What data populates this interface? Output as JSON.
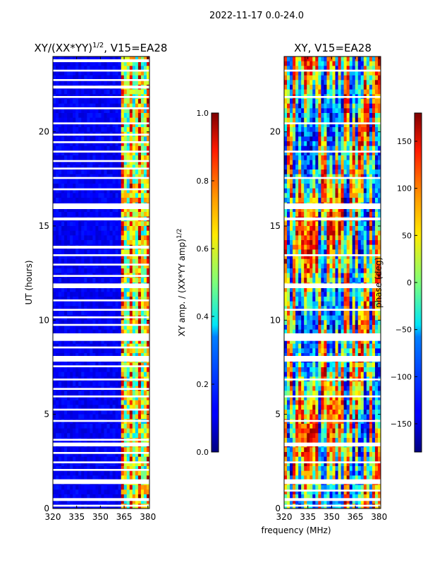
{
  "figure": {
    "suptitle": "2022-11-17 0.0-24.0",
    "xlabel": "frequency (MHz)"
  },
  "chart_data": [
    {
      "type": "heatmap",
      "title": "XY/(XX*YY)^1/2, V15=EA28",
      "title_main": "XY/(XX*YY)",
      "title_exp": "1/2",
      "title_tail": ", V15=EA28",
      "ylabel": "UT (hours)",
      "xlim": [
        320,
        381
      ],
      "ylim": [
        0,
        24
      ],
      "x_ticks": [
        320,
        335,
        350,
        365,
        380
      ],
      "y_ticks": [
        0,
        5,
        10,
        15,
        20
      ],
      "colorbar": {
        "label": "XY amp. / (XX*YY amp)^1/2",
        "label_main": "XY amp. / (XX*YY amp)",
        "label_exp": "1/2",
        "range": [
          0.0,
          1.0
        ],
        "tick_values": [
          0.0,
          0.2,
          0.4,
          0.6,
          0.8,
          1.0
        ],
        "tick_labels": [
          "0.0",
          "0.2",
          "0.4",
          "0.6",
          "0.8",
          "1.0"
        ]
      },
      "flagged_bands_hours": [
        [
          0.1,
          0.2
        ],
        [
          0.4,
          0.55
        ],
        [
          1.3,
          1.55
        ],
        [
          2.0,
          2.1
        ],
        [
          2.4,
          2.5
        ],
        [
          2.9,
          3.0
        ],
        [
          3.3,
          3.5
        ],
        [
          3.6,
          3.7
        ],
        [
          4.6,
          4.7
        ],
        [
          5.2,
          5.3
        ],
        [
          5.9,
          6.0
        ],
        [
          6.3,
          6.4
        ],
        [
          6.8,
          6.9
        ],
        [
          7.5,
          7.6
        ],
        [
          7.8,
          8.1
        ],
        [
          8.5,
          8.6
        ],
        [
          8.9,
          9.3
        ],
        [
          9.7,
          9.8
        ],
        [
          10.1,
          10.2
        ],
        [
          10.5,
          10.6
        ],
        [
          11.0,
          11.1
        ],
        [
          11.7,
          11.95
        ],
        [
          12.3,
          12.4
        ],
        [
          12.9,
          13.0
        ],
        [
          13.4,
          13.5
        ],
        [
          13.8,
          13.95
        ],
        [
          15.3,
          15.45
        ],
        [
          15.9,
          16.2
        ],
        [
          16.9,
          17.0
        ],
        [
          17.5,
          17.6
        ],
        [
          18.0,
          18.1
        ],
        [
          18.4,
          18.5
        ],
        [
          18.9,
          19.0
        ],
        [
          19.4,
          19.5
        ],
        [
          19.8,
          19.9
        ],
        [
          20.4,
          20.5
        ],
        [
          21.2,
          21.3
        ],
        [
          21.8,
          21.9
        ],
        [
          22.3,
          22.45
        ],
        [
          22.7,
          22.8
        ],
        [
          23.2,
          23.3
        ],
        [
          23.7,
          23.85
        ]
      ]
    },
    {
      "type": "heatmap",
      "title": "XY, V15=EA28",
      "ylabel": "",
      "xlim": [
        320,
        381
      ],
      "ylim": [
        0,
        24
      ],
      "x_ticks": [
        320,
        335,
        350,
        365,
        380
      ],
      "y_ticks": [
        0,
        5,
        10,
        15,
        20
      ],
      "colorbar": {
        "label": "phase (deg)",
        "range": [
          -180,
          180
        ],
        "tick_values": [
          -150,
          -100,
          -50,
          0,
          50,
          100,
          150
        ],
        "tick_labels": [
          "−150",
          "−100",
          "−50",
          "0",
          "50",
          "100",
          "150"
        ]
      },
      "flagged_bands_hours": [
        [
          0.1,
          0.2
        ],
        [
          0.4,
          0.55
        ],
        [
          0.9,
          1.0
        ],
        [
          1.3,
          1.55
        ],
        [
          2.4,
          2.5
        ],
        [
          3.3,
          3.5
        ],
        [
          4.6,
          4.7
        ],
        [
          5.9,
          6.0
        ],
        [
          6.8,
          6.9
        ],
        [
          7.8,
          8.1
        ],
        [
          8.9,
          9.3
        ],
        [
          10.5,
          10.6
        ],
        [
          11.7,
          11.95
        ],
        [
          13.4,
          13.5
        ],
        [
          15.3,
          15.45
        ],
        [
          15.9,
          16.2
        ],
        [
          17.5,
          17.6
        ],
        [
          18.9,
          19.0
        ],
        [
          20.4,
          20.5
        ],
        [
          21.8,
          21.9
        ],
        [
          23.2,
          23.3
        ]
      ]
    }
  ]
}
